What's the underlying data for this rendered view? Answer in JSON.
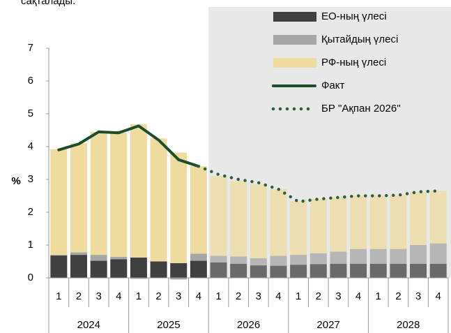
{
  "chart_data": {
    "type": "bar",
    "title": "сақталады.",
    "ylabel": "%",
    "categories": [
      "1",
      "2",
      "3",
      "4",
      "1",
      "2",
      "3",
      "4",
      "1",
      "2",
      "3",
      "4",
      "1",
      "2",
      "3",
      "4",
      "1",
      "2",
      "3",
      "4"
    ],
    "groups": [
      "2024",
      "2025",
      "2026",
      "2027",
      "2028"
    ],
    "ylim": [
      0,
      7
    ],
    "yticks": [
      0,
      1,
      2,
      3,
      4,
      5,
      6,
      7
    ],
    "legend": "top-right",
    "series": [
      {
        "name": "ЕО-ның үлесі",
        "color": "#404040",
        "values": [
          0.68,
          0.7,
          0.52,
          0.57,
          0.62,
          0.5,
          0.45,
          0.52,
          0.47,
          0.43,
          0.38,
          0.37,
          0.4,
          0.42,
          0.43,
          0.43,
          0.43,
          0.43,
          0.43,
          0.43
        ]
      },
      {
        "name": "Қытайдың үлесі",
        "color": "#a6a6a6",
        "values": [
          0.02,
          0.08,
          0.18,
          0.07,
          -0.03,
          0,
          -0.05,
          0.22,
          0.2,
          0.22,
          0.22,
          0.3,
          0.3,
          0.33,
          0.37,
          0.45,
          0.45,
          0.45,
          0.57,
          0.62
        ]
      },
      {
        "name": "РФ-ның үлесі",
        "color": "#eedb9e",
        "values": [
          3.22,
          3.32,
          3.75,
          3.78,
          4.06,
          3.75,
          3.37,
          2.66,
          2.43,
          2.3,
          2.25,
          2.03,
          1.63,
          1.65,
          1.65,
          1.62,
          1.62,
          1.64,
          1.62,
          1.6
        ]
      },
      {
        "name": "Факт",
        "type": "line",
        "color": "#1e4d2b",
        "values": [
          3.9,
          4.08,
          4.45,
          4.42,
          4.63,
          4.2,
          3.6,
          3.4,
          null,
          null,
          null,
          null,
          null,
          null,
          null,
          null,
          null,
          null,
          null,
          null
        ]
      },
      {
        "name": "БР \"Ақпан 2026\"",
        "type": "line",
        "dashed": true,
        "color": "#2f5e3a",
        "values": [
          null,
          null,
          null,
          null,
          null,
          null,
          null,
          3.4,
          3.15,
          3.0,
          2.9,
          2.7,
          2.32,
          2.4,
          2.45,
          2.5,
          2.5,
          2.52,
          2.62,
          2.65
        ]
      }
    ]
  }
}
